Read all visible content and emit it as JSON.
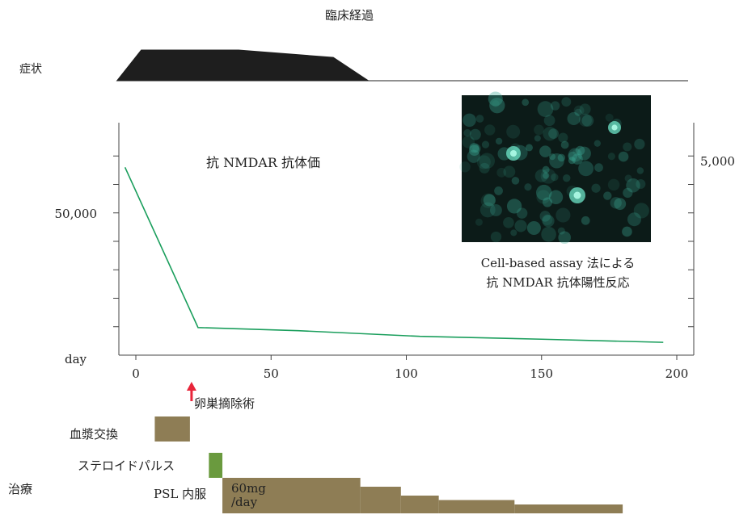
{
  "chart_data": {
    "type": "line",
    "title": "臨床経過",
    "series": [
      {
        "name": "抗 NMDAR 抗体価",
        "color": "#1a9e5c",
        "points": [
          {
            "x": -4,
            "y": 66000
          },
          {
            "x": 23,
            "y": 9700
          },
          {
            "x": 60,
            "y": 8600
          },
          {
            "x": 105,
            "y": 6600
          },
          {
            "x": 150,
            "y": 5600
          },
          {
            "x": 195,
            "y": 4500
          }
        ]
      }
    ],
    "x_axis": {
      "label": "day",
      "range": [
        -7,
        200
      ],
      "ticks": [
        "0",
        "50",
        "100",
        "150",
        "200"
      ],
      "tick_values": [
        0,
        50,
        100,
        150,
        200
      ]
    },
    "y_axis_left": {
      "range": [
        0,
        80000
      ],
      "tick_labels": [
        "50,000"
      ],
      "tick_label_values": [
        50000
      ],
      "minor_tick_values": [
        10000,
        20000,
        30000,
        40000,
        50000,
        60000,
        70000
      ]
    },
    "y_axis_right": {
      "tick_labels": [
        "5,000"
      ]
    },
    "symptom_track": {
      "label": "症状",
      "profile": [
        {
          "day": -7,
          "level": 0
        },
        {
          "day": 2,
          "level": 1.0
        },
        {
          "day": 38,
          "level": 1.0
        },
        {
          "day": 73,
          "level": 0.76
        },
        {
          "day": 86,
          "level": 0
        },
        {
          "day": 200,
          "level": 0
        }
      ]
    },
    "event": {
      "label": "卵巣摘除術",
      "day": 20,
      "color": "#e8253a"
    },
    "treatment": {
      "section_label": "治療",
      "bars": [
        {
          "label": "血漿交換",
          "color": "#8e7d55",
          "segments": [
            {
              "start": 7,
              "end": 20,
              "level": 1
            }
          ]
        },
        {
          "label": "ステロイドパルス",
          "color": "#6a9a3e",
          "segments": [
            {
              "start": 27,
              "end": 32,
              "level": 1
            }
          ]
        },
        {
          "label": "PSL 内服",
          "color": "#8e7d55",
          "dose_note": "60mg\n/day",
          "segments": [
            {
              "start": 32,
              "end": 83,
              "level": 4
            },
            {
              "start": 83,
              "end": 98,
              "level": 3
            },
            {
              "start": 98,
              "end": 112,
              "level": 2
            },
            {
              "start": 112,
              "end": 140,
              "level": 1.5
            },
            {
              "start": 140,
              "end": 180,
              "level": 1
            }
          ]
        }
      ]
    },
    "inset_caption": [
      "Cell-based assay 法による",
      "抗 NMDAR 抗体陽性反応"
    ]
  }
}
